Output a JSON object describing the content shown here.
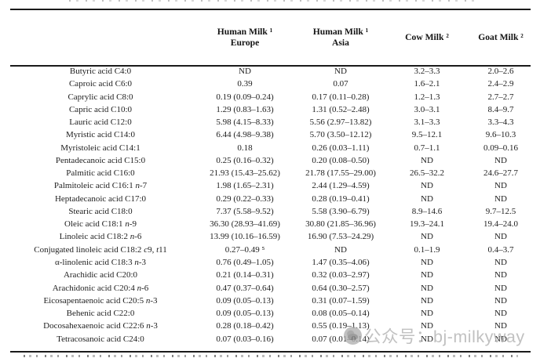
{
  "page": {
    "background_color": "#ffffff",
    "text_color": "#1f1f1f",
    "rule_color": "#1a1a1a"
  },
  "table": {
    "header": {
      "spacer": "",
      "hm_europe": {
        "line1": "Human Milk ¹",
        "line2": "Europe"
      },
      "hm_asia": {
        "line1": "Human Milk ¹",
        "line2": "Asia"
      },
      "cow": "Cow Milk ²",
      "goat": "Goat Milk ²"
    },
    "rows": [
      {
        "label": "Butyric acid C4:0",
        "hm_europe": "ND",
        "hm_asia": "ND",
        "cow": "3.2–3.3",
        "goat": "2.0–2.6"
      },
      {
        "label": "Caproic acid C6:0",
        "hm_europe": "0.39",
        "hm_asia": "0.07",
        "cow": "1.6–2.1",
        "goat": "2.4–2.9"
      },
      {
        "label": "Caprylic acid C8:0",
        "hm_europe": "0.19 (0.09–0.24)",
        "hm_asia": "0.17 (0.11–0.28)",
        "cow": "1.2–1.3",
        "goat": "2.7–2.7"
      },
      {
        "label": "Capric acid C10:0",
        "hm_europe": "1.29 (0.83–1.63)",
        "hm_asia": "1.31 (0.52–2.48)",
        "cow": "3.0–3.1",
        "goat": "8.4–9.7"
      },
      {
        "label": "Lauric acid C12:0",
        "hm_europe": "5.98 (4.15–8.33)",
        "hm_asia": "5.56 (2.97–13.82)",
        "cow": "3.1–3.3",
        "goat": "3.3–4.3"
      },
      {
        "label": "Myristic acid C14:0",
        "hm_europe": "6.44 (4.98–9.38)",
        "hm_asia": "5.70 (3.50–12.12)",
        "cow": "9.5–12.1",
        "goat": "9.6–10.3"
      },
      {
        "label": "Myristoleic acid C14:1",
        "hm_europe": "0.18",
        "hm_asia": "0.26 (0.03–1.11)",
        "cow": "0.7–1.1",
        "goat": "0.09–0.16"
      },
      {
        "label": "Pentadecanoic acid C15:0",
        "hm_europe": "0.25 (0.16–0.32)",
        "hm_asia": "0.20 (0.08–0.50)",
        "cow": "ND",
        "goat": "ND"
      },
      {
        "label": "Palmitic acid C16:0",
        "hm_europe": "21.93 (15.43–25.62)",
        "hm_asia": "21.78 (17.55–29.00)",
        "cow": "26.5–32.2",
        "goat": "24.6–27.7"
      },
      {
        "label": "Palmitoleic acid C16:1 n-7",
        "hm_europe": "1.98 (1.65–2.31)",
        "hm_asia": "2.44 (1.29–4.59)",
        "cow": "ND",
        "goat": "ND"
      },
      {
        "label": "Heptadecanoic acid C17:0",
        "hm_europe": "0.29 (0.22–0.33)",
        "hm_asia": "0.28 (0.19–0.41)",
        "cow": "ND",
        "goat": "ND"
      },
      {
        "label": "Stearic acid C18:0",
        "hm_europe": "7.37 (5.58–9.52)",
        "hm_asia": "5.58 (3.90–6.79)",
        "cow": "8.9–14.6",
        "goat": "9.7–12.5"
      },
      {
        "label": "Oleic acid C18:1 n-9",
        "hm_europe": "36.30 (28.93–41.69)",
        "hm_asia": "30.80 (21.85–36.96)",
        "cow": "19.3–24.1",
        "goat": "19.4–24.0"
      },
      {
        "label": "Linoleic acid C18:2 n-6",
        "hm_europe": "13.99 (10.16–16.59)",
        "hm_asia": "16.90 (7.53–24.29)",
        "cow": "ND",
        "goat": "ND"
      },
      {
        "label": "Conjugated linoleic acid C18:2 c9, t11",
        "hm_europe": "0.27–0.49 ⁵",
        "hm_asia": "ND",
        "cow": "0.1–1.9",
        "goat": "0.4–3.7"
      },
      {
        "label": "α-linolenic acid C18:3 n-3",
        "hm_europe": "0.76 (0.49–1.05)",
        "hm_asia": "1.47 (0.35–4.06)",
        "cow": "ND",
        "goat": "ND"
      },
      {
        "label": "Arachidic acid C20:0",
        "hm_europe": "0.21 (0.14–0.31)",
        "hm_asia": "0.32 (0.03–2.97)",
        "cow": "ND",
        "goat": "ND"
      },
      {
        "label": "Arachidonic acid C20:4 n-6",
        "hm_europe": "0.47 (0.37–0.64)",
        "hm_asia": "0.64 (0.30–2.57)",
        "cow": "ND",
        "goat": "ND"
      },
      {
        "label": "Eicosapentaenoic acid C20:5 n-3",
        "hm_europe": "0.09 (0.05–0.13)",
        "hm_asia": "0.31 (0.07–1.59)",
        "cow": "ND",
        "goat": "ND"
      },
      {
        "label": "Behenic acid C22:0",
        "hm_europe": "0.09 (0.05–0.13)",
        "hm_asia": "0.08 (0.05–0.14)",
        "cow": "ND",
        "goat": "ND"
      },
      {
        "label": "Docosahexaenoic acid C22:6 n-3",
        "hm_europe": "0.28 (0.18–0.42)",
        "hm_asia": "0.55 (0.19–1.13)",
        "cow": "ND",
        "goat": "ND"
      },
      {
        "label": "Tetracosanoic acid C24:0",
        "hm_europe": "0.07 (0.03–0.16)",
        "hm_asia": "0.07 (0.01–0.14)",
        "cow": "ND",
        "goat": "ND"
      }
    ]
  },
  "watermark": {
    "text": "公众号：bj-milkyway",
    "color": "#b7b7b7"
  }
}
